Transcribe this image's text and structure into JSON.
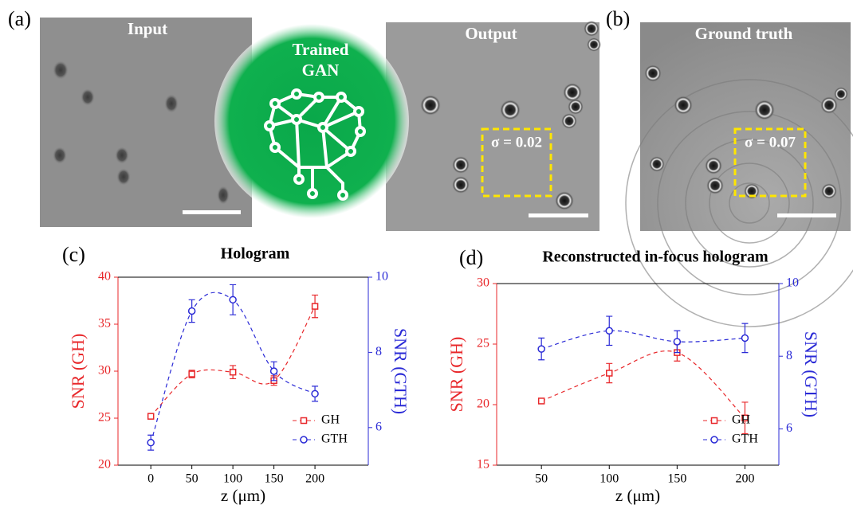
{
  "panels": {
    "a": {
      "label": "(a)",
      "input": "Input",
      "gan": [
        "Trained",
        "GAN"
      ],
      "output": "Output",
      "sigma": "σ = 0.02"
    },
    "b": {
      "label": "(b)",
      "title": "Ground truth",
      "sigma": "σ = 0.07"
    }
  },
  "chart_data": [
    {
      "type": "line",
      "panel": "(c)",
      "title": "Hologram",
      "x_label": "z (μm)",
      "y_label": "SNR (GH)",
      "y2_label": "SNR (GTH)",
      "x": [
        0,
        50,
        100,
        150,
        200
      ],
      "xlim": [
        -40,
        265
      ],
      "xticks": [
        0,
        50,
        100,
        150,
        200
      ],
      "ylim": [
        20,
        40
      ],
      "yticks": [
        20,
        25,
        30,
        35,
        40
      ],
      "y2lim": [
        5,
        10
      ],
      "y2ticks": [
        6,
        8,
        10
      ],
      "legend": "lower right",
      "series": [
        {
          "name": "GH",
          "color": "#e8272a",
          "marker": "square",
          "values": [
            25.2,
            29.7,
            29.9,
            29.0,
            36.9
          ],
          "errors": [
            0.2,
            0.4,
            0.7,
            0.5,
            1.2
          ]
        },
        {
          "name": "GTH",
          "color": "#2a2ad6",
          "marker": "circle",
          "axis": "y2",
          "values": [
            5.6,
            9.1,
            9.4,
            7.5,
            6.9
          ],
          "errors": [
            0.2,
            0.3,
            0.4,
            0.25,
            0.2
          ]
        }
      ]
    },
    {
      "type": "line",
      "panel": "(d)",
      "title": "Reconstructed in-focus hologram",
      "x_label": "z (μm)",
      "y_label": "SNR (GH)",
      "y2_label": "SNR (GTH)",
      "x": [
        50,
        100,
        150,
        200
      ],
      "xlim": [
        17,
        225
      ],
      "xticks": [
        50,
        100,
        150,
        200
      ],
      "ylim": [
        15,
        30
      ],
      "yticks": [
        15,
        20,
        25,
        30
      ],
      "y2lim": [
        5,
        10
      ],
      "y2ticks": [
        6,
        8,
        10
      ],
      "legend": "lower right",
      "series": [
        {
          "name": "GH",
          "color": "#e8272a",
          "marker": "square",
          "values": [
            20.3,
            22.6,
            24.3,
            18.9
          ],
          "errors": [
            0.15,
            0.8,
            0.7,
            1.3
          ]
        },
        {
          "name": "GTH",
          "color": "#2a2ad6",
          "marker": "circle",
          "axis": "y2",
          "values": [
            8.2,
            8.7,
            8.4,
            8.5
          ],
          "errors": [
            0.3,
            0.4,
            0.3,
            0.4
          ]
        }
      ]
    }
  ]
}
